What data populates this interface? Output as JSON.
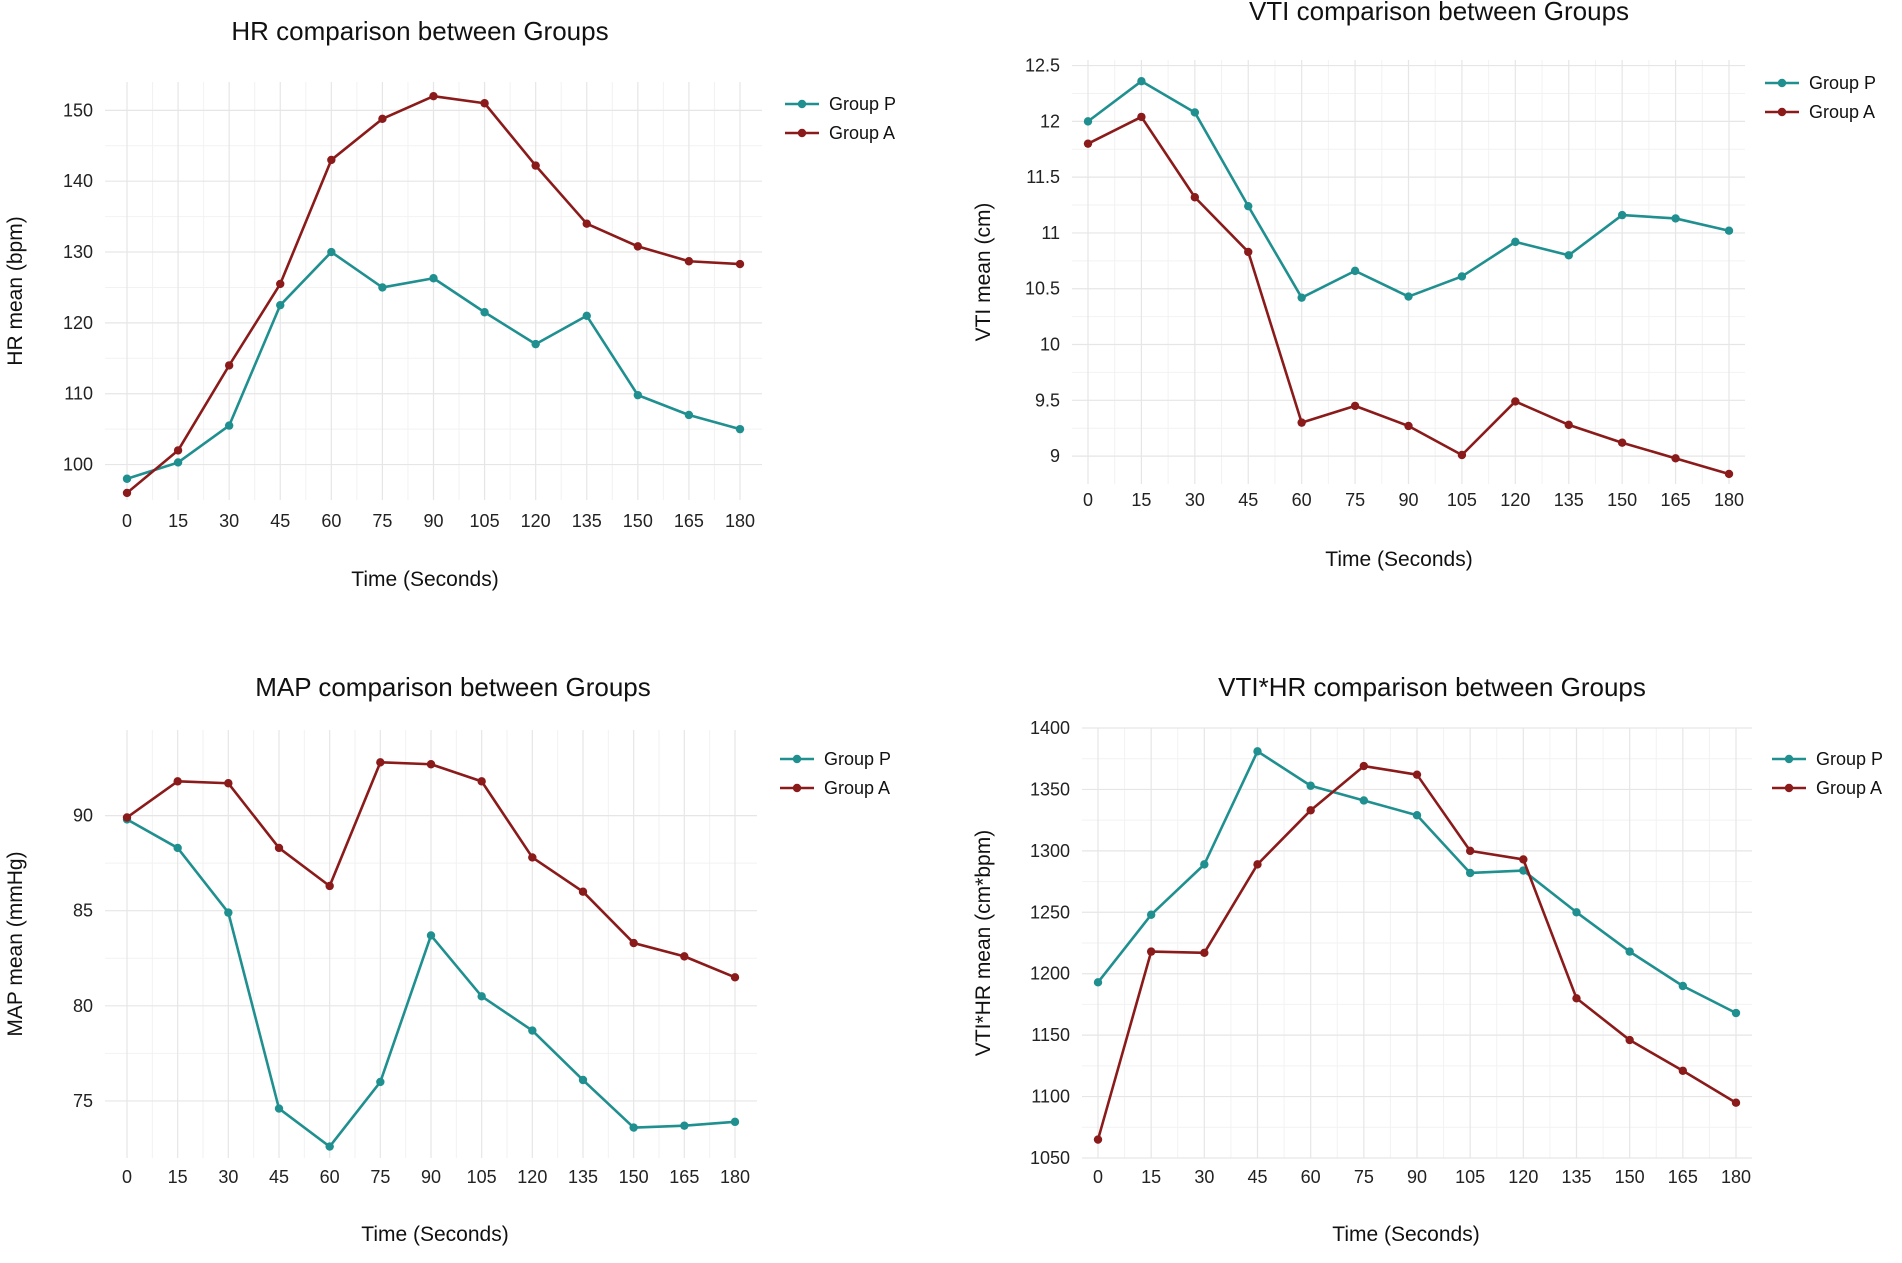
{
  "chart_data": [
    {
      "type": "line",
      "title": "HR comparison between Groups",
      "xlabel": "Time (Seconds)",
      "ylabel": "HR mean (bpm)",
      "x": [
        0,
        15,
        30,
        45,
        60,
        75,
        90,
        105,
        120,
        135,
        150,
        165,
        180
      ],
      "yticks": [
        100,
        110,
        120,
        130,
        140,
        150
      ],
      "ylim": [
        95,
        154
      ],
      "legend_position": "top-right",
      "series": [
        {
          "name": "Group P",
          "color": "#1f8f8f",
          "values": [
            98,
            100.3,
            105.5,
            122.5,
            130,
            125,
            126.3,
            121.5,
            117,
            121,
            109.8,
            107,
            105
          ]
        },
        {
          "name": "Group A",
          "color": "#8b1a1a",
          "values": [
            96,
            102,
            114,
            125.5,
            143,
            148.8,
            152,
            151,
            142.2,
            134,
            130.8,
            128.7,
            128.3
          ]
        }
      ]
    },
    {
      "type": "line",
      "title": "VTI comparison between Groups",
      "xlabel": "Time (Seconds)",
      "ylabel": "VTI mean (cm)",
      "x": [
        0,
        15,
        30,
        45,
        60,
        75,
        90,
        105,
        120,
        135,
        150,
        165,
        180
      ],
      "yticks": [
        "9",
        "9.5",
        "10",
        "10.5",
        "11",
        "11.5",
        "12",
        "12.5"
      ],
      "ylim": [
        8.75,
        12.55
      ],
      "legend_position": "top-right",
      "series": [
        {
          "name": "Group P",
          "color": "#1f8f8f",
          "values": [
            12,
            12.36,
            12.08,
            11.24,
            10.42,
            10.66,
            10.43,
            10.61,
            10.92,
            10.8,
            11.16,
            11.13,
            11.02
          ]
        },
        {
          "name": "Group A",
          "color": "#8b1a1a",
          "values": [
            11.8,
            12.04,
            11.32,
            10.83,
            9.3,
            9.45,
            9.27,
            9.01,
            9.49,
            9.28,
            9.12,
            8.98,
            8.84
          ]
        }
      ]
    },
    {
      "type": "line",
      "title": "MAP comparison between Groups",
      "xlabel": "Time (Seconds)",
      "ylabel": "MAP mean (mmHg)",
      "x": [
        0,
        15,
        30,
        45,
        60,
        75,
        90,
        105,
        120,
        135,
        150,
        165,
        180
      ],
      "yticks": [
        75,
        80,
        85,
        90
      ],
      "ylim": [
        72,
        94.5
      ],
      "legend_position": "top-right",
      "series": [
        {
          "name": "Group P",
          "color": "#1f8f8f",
          "values": [
            89.8,
            88.3,
            84.9,
            74.6,
            72.6,
            76,
            83.7,
            80.5,
            78.7,
            76.1,
            73.6,
            73.7,
            73.9
          ]
        },
        {
          "name": "Group A",
          "color": "#8b1a1a",
          "values": [
            89.9,
            91.8,
            91.7,
            88.3,
            86.3,
            92.8,
            92.7,
            91.8,
            87.8,
            86,
            83.3,
            82.6,
            81.5
          ]
        }
      ]
    },
    {
      "type": "line",
      "title": "VTI*HR comparison between Groups",
      "xlabel": "Time (Seconds)",
      "ylabel": "VTI*HR mean  (cm*bpm)",
      "x": [
        0,
        15,
        30,
        45,
        60,
        75,
        90,
        105,
        120,
        135,
        150,
        165,
        180
      ],
      "yticks": [
        1050,
        1100,
        1150,
        1200,
        1250,
        1300,
        1350,
        1400
      ],
      "ylim": [
        1050,
        1400
      ],
      "legend_position": "top-right",
      "series": [
        {
          "name": "Group P",
          "color": "#1f8f8f",
          "values": [
            1193,
            1248,
            1289,
            1381,
            1353,
            1341,
            1329,
            1282,
            1284,
            1250,
            1218,
            1190,
            1168
          ]
        },
        {
          "name": "Group A",
          "color": "#8b1a1a",
          "values": [
            1065,
            1218,
            1217,
            1289,
            1333,
            1369,
            1362,
            1300,
            1293,
            1180,
            1146,
            1121,
            1095
          ]
        }
      ]
    }
  ]
}
